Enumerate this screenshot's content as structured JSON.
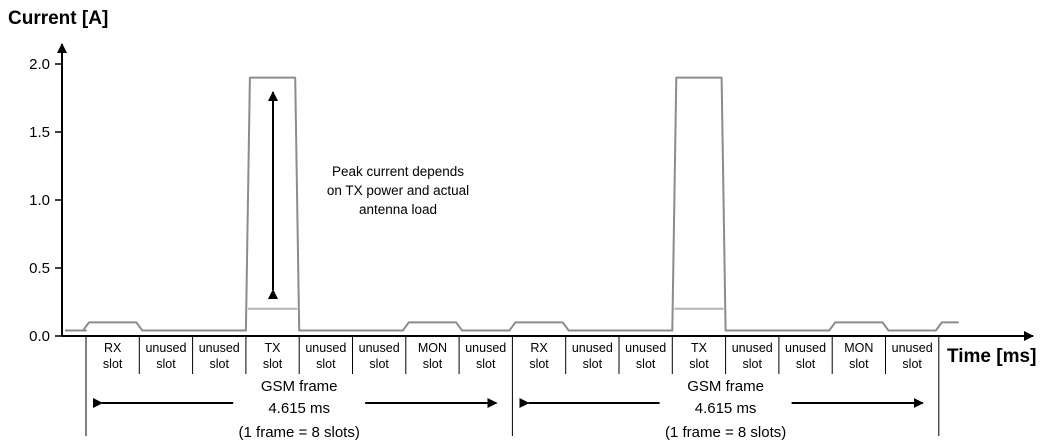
{
  "chart_data": {
    "type": "line",
    "ylabel": "Current [A]",
    "xlabel": "Time [ms]",
    "ylim": [
      0,
      2.0
    ],
    "yticks": [
      "0.0",
      "0.5",
      "1.0",
      "1.5",
      "2.0"
    ],
    "grid": false,
    "slots": [
      {
        "top": "RX",
        "bottom": "slot"
      },
      {
        "top": "unused",
        "bottom": "slot"
      },
      {
        "top": "unused",
        "bottom": "slot"
      },
      {
        "top": "TX",
        "bottom": "slot"
      },
      {
        "top": "unused",
        "bottom": "slot"
      },
      {
        "top": "unused",
        "bottom": "slot"
      },
      {
        "top": "MON",
        "bottom": "slot"
      },
      {
        "top": "unused",
        "bottom": "slot"
      },
      {
        "top": "RX",
        "bottom": "slot"
      },
      {
        "top": "unused",
        "bottom": "slot"
      },
      {
        "top": "unused",
        "bottom": "slot"
      },
      {
        "top": "TX",
        "bottom": "slot"
      },
      {
        "top": "unused",
        "bottom": "slot"
      },
      {
        "top": "unused",
        "bottom": "slot"
      },
      {
        "top": "MON",
        "bottom": "slot"
      },
      {
        "top": "unused",
        "bottom": "slot"
      }
    ],
    "series": [
      {
        "slot_current_A": [
          0.1,
          0.04,
          0.04,
          1.9,
          0.04,
          0.04,
          0.1,
          0.04,
          0.1,
          0.04,
          0.04,
          1.9,
          0.04,
          0.04,
          0.1,
          0.04
        ],
        "tx_low_level_A": 0.2,
        "color": "#8c8c8c"
      }
    ],
    "frames": [
      {
        "name": "GSM frame",
        "duration": "4.615 ms",
        "note": "(1 frame = 8 slots)"
      },
      {
        "name": "GSM frame",
        "duration": "4.615 ms",
        "note": "(1 frame = 8 slots)"
      }
    ],
    "annotations": [
      {
        "lines": [
          "Peak current depends",
          "on TX power and actual",
          "antenna load"
        ]
      }
    ]
  }
}
